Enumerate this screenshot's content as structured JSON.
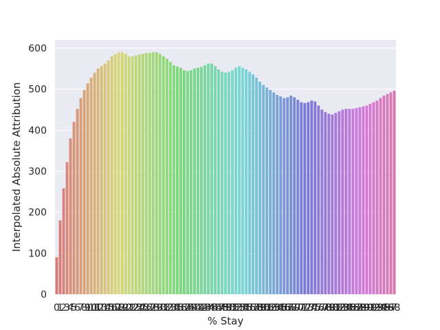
{
  "chart_data": {
    "type": "bar",
    "title": "",
    "xlabel": "% Stay",
    "ylabel": "Interpolated Absolute Attribution",
    "ylim": [
      0,
      620
    ],
    "yticks": [
      0,
      100,
      200,
      300,
      400,
      500,
      600
    ],
    "grid": true,
    "legend": "none",
    "background_color": "#eaeaf2",
    "categories": [
      "0",
      "1",
      "2",
      "3",
      "4",
      "5",
      "6",
      "7",
      "8",
      "9",
      "10",
      "11",
      "12",
      "13",
      "14",
      "15",
      "16",
      "17",
      "18",
      "19",
      "20",
      "21",
      "22",
      "23",
      "24",
      "25",
      "26",
      "27",
      "28",
      "29",
      "30",
      "31",
      "32",
      "33",
      "34",
      "35",
      "36",
      "37",
      "38",
      "39",
      "40",
      "41",
      "42",
      "43",
      "44",
      "45",
      "46",
      "47",
      "48",
      "49",
      "50",
      "51",
      "52",
      "53",
      "54",
      "55",
      "56",
      "57",
      "58",
      "59",
      "60",
      "61",
      "62",
      "63",
      "64",
      "65",
      "66",
      "67",
      "68",
      "69",
      "70",
      "71",
      "72",
      "73",
      "74",
      "75",
      "76",
      "77",
      "78",
      "79",
      "80",
      "81",
      "82",
      "83",
      "84",
      "85",
      "86",
      "87",
      "88",
      "89",
      "90",
      "91",
      "92",
      "93",
      "94",
      "95",
      "96",
      "97",
      "98"
    ],
    "values": [
      90,
      180,
      258,
      322,
      380,
      420,
      452,
      478,
      498,
      514,
      528,
      540,
      550,
      556,
      562,
      570,
      580,
      585,
      590,
      590,
      586,
      580,
      580,
      582,
      584,
      586,
      588,
      588,
      590,
      590,
      586,
      580,
      574,
      566,
      558,
      555,
      552,
      546,
      544,
      546,
      550,
      552,
      554,
      558,
      562,
      562,
      556,
      548,
      542,
      540,
      542,
      546,
      552,
      556,
      552,
      548,
      542,
      536,
      528,
      518,
      510,
      504,
      498,
      492,
      486,
      482,
      478,
      480,
      484,
      480,
      474,
      468,
      466,
      468,
      472,
      470,
      460,
      450,
      444,
      440,
      438,
      442,
      446,
      450,
      452,
      452,
      452,
      454,
      456,
      458,
      460,
      464,
      468,
      472,
      478,
      484,
      488,
      492,
      496
    ]
  }
}
